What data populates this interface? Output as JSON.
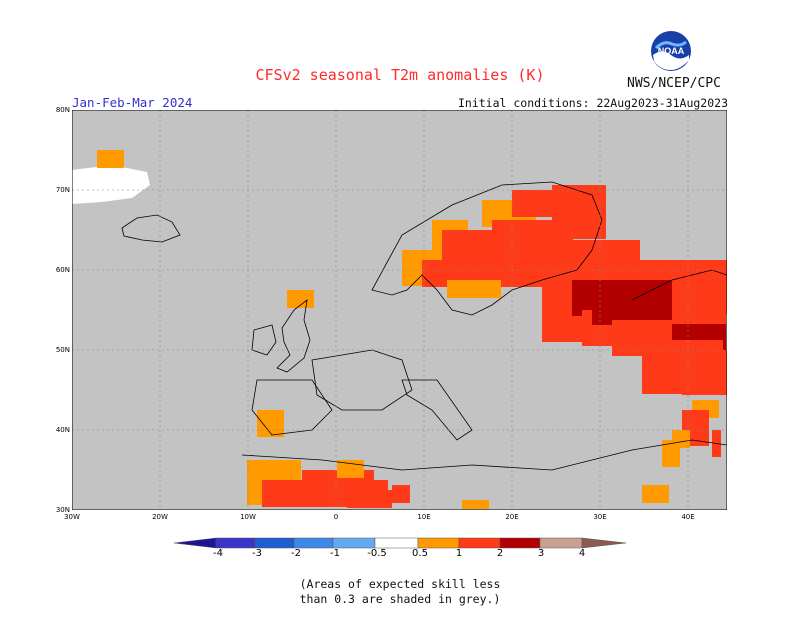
{
  "header": {
    "title": "CFSv2 seasonal T2m anomalies (K)",
    "agency": "NWS/NCEP/CPC",
    "period": "Jan-Feb-Mar 2024",
    "initial_conditions": "Initial conditions: 22Aug2023-31Aug2023",
    "logo_text": "NOAA"
  },
  "map": {
    "lat_ticks": [
      "80N",
      "70N",
      "60N",
      "50N",
      "40N",
      "30N"
    ],
    "lon_ticks": [
      "30W",
      "20W",
      "10W",
      "0",
      "10E",
      "20E",
      "30E",
      "40E"
    ],
    "background_color": "#c3c3c3"
  },
  "colorbar": {
    "labels": [
      "-4",
      "-3",
      "-2",
      "-1",
      "-0.5",
      "0.5",
      "1",
      "2",
      "3",
      "4"
    ],
    "colors": [
      "#1e1496",
      "#3a34c8",
      "#1f5ed0",
      "#3c8ae6",
      "#64aaf2",
      "#ffffff",
      "#ff9a00",
      "#ff3a18",
      "#b20000",
      "#c8a090",
      "#8c5a50"
    ]
  },
  "note": {
    "line1": "(Areas of expected skill less",
    "line2": "than 0.3 are shaded in grey.)"
  }
}
